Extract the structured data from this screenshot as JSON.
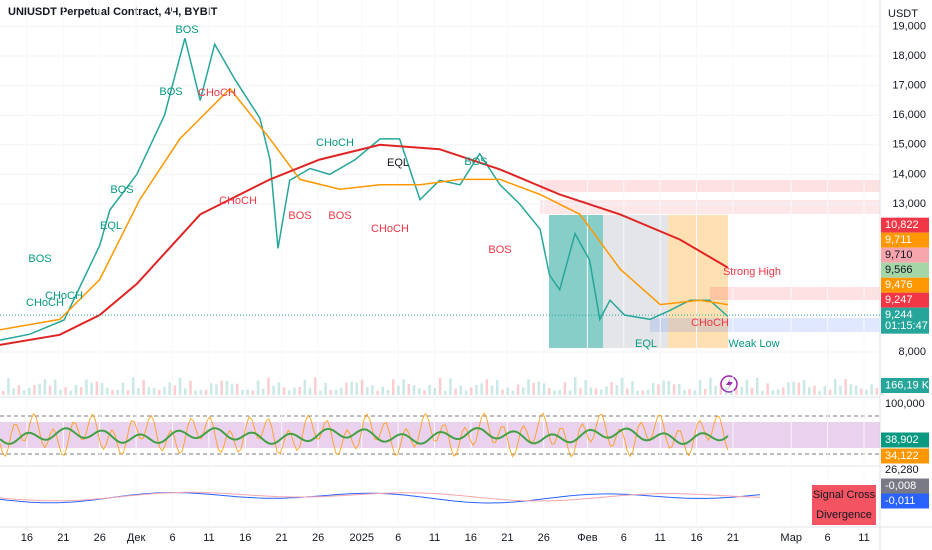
{
  "chart_data": {
    "type": "line",
    "title": "UNIUSDT Perpetual Contract, 4Ч, BYBIT",
    "y_unit": "USDT",
    "xlim": [
      -3.7,
      117.2
    ],
    "xticks": [
      {
        "value": 0,
        "label": "16"
      },
      {
        "value": 5,
        "label": "21"
      },
      {
        "value": 10,
        "label": "26"
      },
      {
        "value": 15,
        "label": "Дек"
      },
      {
        "value": 20,
        "label": "6"
      },
      {
        "value": 25,
        "label": "11"
      },
      {
        "value": 30,
        "label": "16"
      },
      {
        "value": 35,
        "label": "21"
      },
      {
        "value": 40,
        "label": "26"
      },
      {
        "value": 46,
        "label": "2025"
      },
      {
        "value": 51,
        "label": "6"
      },
      {
        "value": 56,
        "label": "11"
      },
      {
        "value": 61,
        "label": "16"
      },
      {
        "value": 66,
        "label": "21"
      },
      {
        "value": 71,
        "label": "26"
      },
      {
        "value": 77,
        "label": "Фев"
      },
      {
        "value": 82,
        "label": "6"
      },
      {
        "value": 87,
        "label": "11"
      },
      {
        "value": 92,
        "label": "16"
      },
      {
        "value": 97,
        "label": "21"
      },
      {
        "value": 105,
        "label": "Мар"
      },
      {
        "value": 110,
        "label": "6"
      },
      {
        "value": 115,
        "label": "11"
      }
    ],
    "ylim": [
      6547,
      19892
    ],
    "yticks": [
      {
        "value": 8000,
        "label": "8,000"
      },
      {
        "value": 13000,
        "label": "13,000"
      },
      {
        "value": 14000,
        "label": "14,000"
      },
      {
        "value": 15000,
        "label": "15,000"
      },
      {
        "value": 16000,
        "label": "16,000"
      },
      {
        "value": 17000,
        "label": "17,000"
      },
      {
        "value": 18000,
        "label": "18,000"
      },
      {
        "value": 19000,
        "label": "19,000"
      }
    ],
    "series": [
      {
        "color": "#26a69a",
        "x": [
          -3.7,
          0.4,
          5.1,
          10.0,
          11.4,
          15.1,
          18.9,
          21.7,
          23.8,
          25.8,
          28.6,
          32.0,
          33.4,
          34.5,
          36.1,
          38.9,
          41.6,
          45.1,
          48.5,
          51.2,
          54.0,
          56.7,
          59.5,
          62.2,
          65.0,
          67.7,
          70.5,
          71.8,
          73.2,
          75.3,
          77.3,
          78.7,
          80.1,
          82.1,
          85.6,
          88.3,
          91.1,
          93.8,
          96.3
        ],
        "values": [
          8400,
          8600,
          9080,
          11600,
          12800,
          14000,
          16000,
          18600,
          16500,
          18400,
          17200,
          15900,
          14500,
          11500,
          13800,
          14200,
          14000,
          14500,
          15200,
          15200,
          13150,
          13800,
          13650,
          14700,
          13650,
          13000,
          12150,
          10600,
          10100,
          12000,
          11100,
          9100,
          9750,
          9250,
          9100,
          9400,
          9750,
          9750,
          9200
        ]
      },
      {
        "color": "#ff9800",
        "x": [
          -3.7,
          4.5,
          10.0,
          15.5,
          21.0,
          27.9,
          33.4,
          37.5,
          43.0,
          48.5,
          54.0,
          59.5,
          65.0,
          70.5,
          76.0,
          81.5,
          87.0,
          92.4,
          96.3
        ],
        "values": [
          8750,
          9100,
          10450,
          13150,
          15200,
          16900,
          15200,
          13830,
          13500,
          13650,
          13650,
          13830,
          13830,
          13320,
          12650,
          10800,
          9600,
          9750,
          9600
        ]
      },
      {
        "color": "#e02424",
        "x": [
          -3.7,
          4.5,
          10.0,
          15.1,
          23.8,
          33.4,
          40.2,
          48.5,
          56.7,
          65.0,
          73.2,
          81.5,
          89.7,
          96.3
        ],
        "values": [
          8240,
          8580,
          9250,
          10300,
          12650,
          13830,
          14500,
          15000,
          14850,
          14170,
          13320,
          12650,
          11800,
          10850
        ]
      }
    ],
    "price_labels": [
      {
        "value": 10822,
        "label": "10,822",
        "color": "#f23645"
      },
      {
        "value": 9711,
        "label": "9,711",
        "color": "#ff9800"
      },
      {
        "value": 9710,
        "label": "9,710",
        "color": "#f7a5ad"
      },
      {
        "value": 9566,
        "label": "9,566",
        "color": "#a5d6a7"
      },
      {
        "value": 9476,
        "label": "9,476",
        "color": "#ff9800"
      },
      {
        "value": 9247,
        "label": "9,247",
        "color": "#f23645"
      },
      {
        "value": 9244,
        "label": "9,244",
        "color": "#26a69a"
      }
    ],
    "countdown": "01:15:47",
    "volume_label": "166,19 K",
    "indicator_labels": [
      {
        "label": "100,000",
        "color": null
      },
      {
        "label": "38,902",
        "color": "#089981"
      },
      {
        "label": "34,122",
        "color": "#ff9800"
      },
      {
        "label": "26,280",
        "color": null
      },
      {
        "label": "-0,008",
        "color": "#787b86"
      },
      {
        "label": "-0,011",
        "color": "#2962ff"
      }
    ],
    "signals": [
      "Signal Cross",
      "Divergence"
    ],
    "annotations": [
      {
        "text": "BOS",
        "color": "#089981"
      },
      {
        "text": "CHoCH",
        "color": "#089981"
      },
      {
        "text": "CHoCH",
        "color": "#089981"
      },
      {
        "text": "EQL",
        "color": "#089981"
      },
      {
        "text": "BOS",
        "color": "#089981"
      },
      {
        "text": "BOS",
        "color": "#089981"
      },
      {
        "text": "BOS",
        "color": "#089981"
      },
      {
        "text": "CHoCH",
        "color": "#f23645"
      },
      {
        "text": "CHoCH",
        "color": "#f23645"
      },
      {
        "text": "BOS",
        "color": "#f23645"
      },
      {
        "text": "BOS",
        "color": "#f23645"
      },
      {
        "text": "CHoCH",
        "color": "#089981"
      },
      {
        "text": "EQL",
        "color": "#131722"
      },
      {
        "text": "CHoCH",
        "color": "#f23645"
      },
      {
        "text": "BOS",
        "color": "#089981"
      },
      {
        "text": "BOS",
        "color": "#f23645"
      },
      {
        "text": "Strong High",
        "color": "#f23645"
      },
      {
        "text": "Weak Low",
        "color": "#089981"
      },
      {
        "text": "CHoCH",
        "color": "#f23645"
      },
      {
        "text": "EQL",
        "color": "#089981"
      }
    ]
  }
}
